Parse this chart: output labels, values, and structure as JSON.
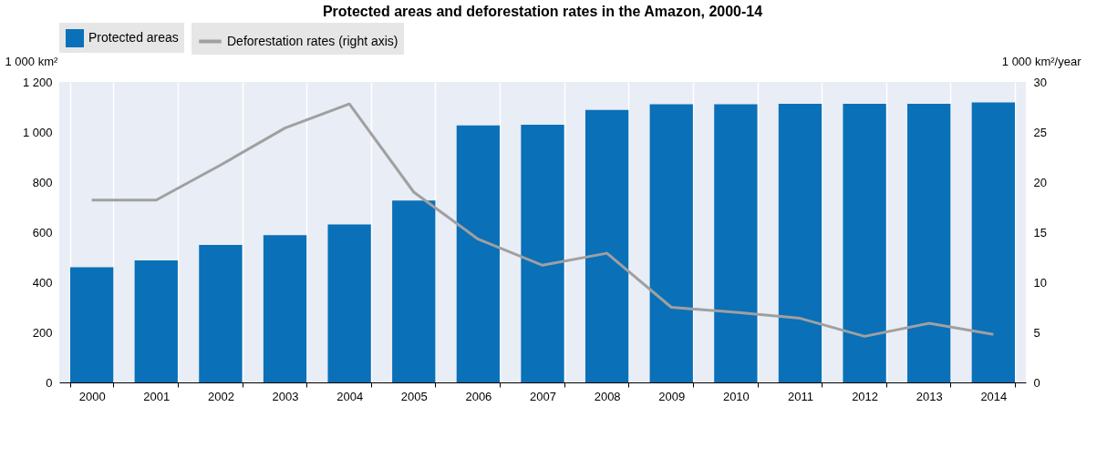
{
  "chart_data": {
    "type": "bar",
    "title": "Protected areas and deforestation rates in the Amazon, 2000-14",
    "categories": [
      "2000",
      "2001",
      "2002",
      "2003",
      "2004",
      "2005",
      "2006",
      "2007",
      "2008",
      "2009",
      "2010",
      "2011",
      "2012",
      "2013",
      "2014"
    ],
    "series": [
      {
        "name": "Protected areas",
        "color": "#0a70b8",
        "values": [
          460,
          487,
          549,
          588,
          631,
          726,
          1026,
          1029,
          1088,
          1111,
          1111,
          1113,
          1113,
          1113,
          1118
        ]
      },
      {
        "name": "Deforestation rates (right axis)",
        "type": "line",
        "axis": "y2",
        "color": "#a0a0a0",
        "values": [
          18.2,
          18.2,
          21.7,
          25.4,
          27.8,
          19.0,
          14.3,
          11.7,
          12.9,
          7.5,
          7.0,
          6.4,
          4.6,
          5.9,
          4.8
        ]
      }
    ],
    "ylabel": "1 000 km²",
    "y2label": "1 000 km²/year",
    "ylim": [
      0,
      1200
    ],
    "yticks": [
      0,
      200,
      400,
      600,
      800,
      {
        "value": 1000,
        "label": "1 000"
      },
      {
        "value": 1200,
        "label": "1 200"
      }
    ],
    "y2lim": [
      0,
      30
    ],
    "y2ticks": [
      0,
      5,
      10,
      15,
      20,
      25,
      30
    ],
    "grid": "x",
    "legend": "top",
    "line_style": "solid",
    "marker": "none"
  }
}
